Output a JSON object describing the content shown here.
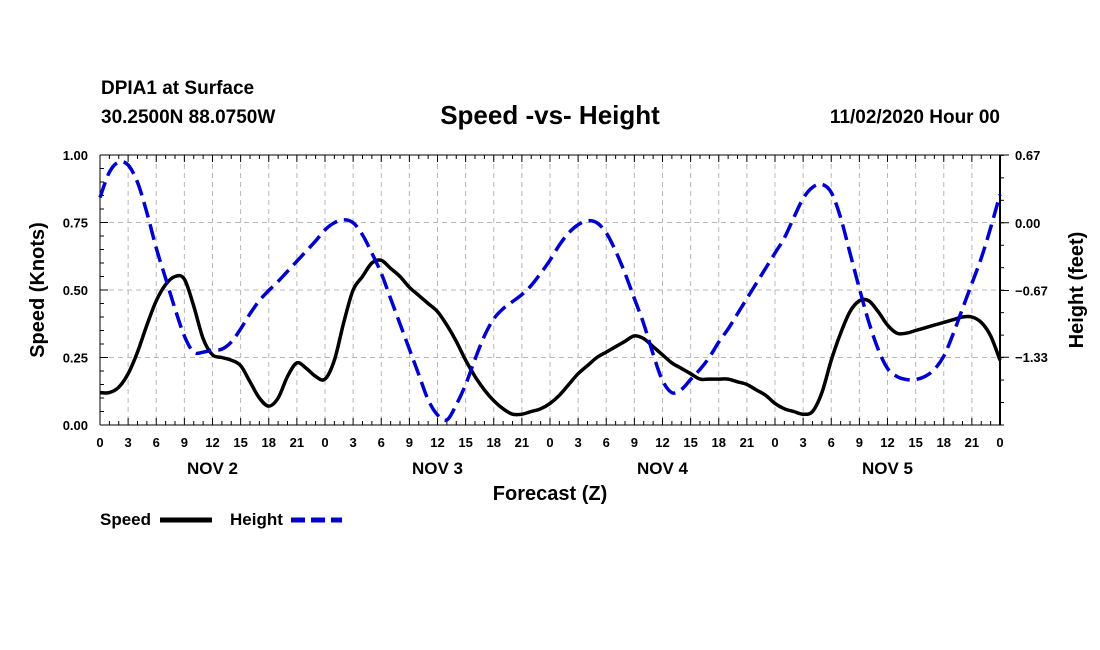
{
  "header": {
    "station": "DPIA1 at Surface",
    "coords": "30.2500N 88.0750W",
    "title": "Speed -vs- Height",
    "datetime": "11/02/2020 Hour 00"
  },
  "chart_data": {
    "type": "line",
    "title": "Speed -vs- Height",
    "xlabel": "Forecast (Z)",
    "ylabel_left": "Speed (Knots)",
    "ylabel_right": "Height (feet)",
    "x_range": [
      0,
      96
    ],
    "x_tick_labels": [
      "0",
      "3",
      "6",
      "9",
      "12",
      "15",
      "18",
      "21",
      "0",
      "3",
      "6",
      "9",
      "12",
      "15",
      "18",
      "21",
      "0",
      "3",
      "6",
      "9",
      "12",
      "15",
      "18",
      "21",
      "0",
      "3",
      "6",
      "9",
      "12",
      "15",
      "18",
      "21",
      "0"
    ],
    "date_labels": [
      {
        "label": "NOV 2",
        "hour": 12
      },
      {
        "label": "NOV 3",
        "hour": 36
      },
      {
        "label": "NOV 4",
        "hour": 60
      },
      {
        "label": "NOV 5",
        "hour": 84
      }
    ],
    "y_left": {
      "range": [
        0,
        1.0
      ],
      "ticks": [
        0.0,
        0.25,
        0.5,
        0.75,
        1.0
      ],
      "tick_labels": [
        "0.00",
        "0.25",
        "0.50",
        "0.75",
        "1.00"
      ]
    },
    "y_right": {
      "range": [
        -2.0,
        0.67
      ],
      "ticks": [
        0.67,
        0.0,
        -0.67,
        -1.33
      ],
      "tick_labels": [
        "0.67",
        "0.00",
        "−0.67",
        "−1.33"
      ]
    },
    "grid": true,
    "series": [
      {
        "name": "Speed",
        "axis": "left",
        "color": "#000000",
        "style": "solid",
        "points": [
          [
            0,
            0.12
          ],
          [
            1,
            0.12
          ],
          [
            2,
            0.14
          ],
          [
            3,
            0.19
          ],
          [
            4,
            0.27
          ],
          [
            5,
            0.37
          ],
          [
            6,
            0.46
          ],
          [
            7,
            0.52
          ],
          [
            8,
            0.55
          ],
          [
            9,
            0.54
          ],
          [
            10,
            0.44
          ],
          [
            11,
            0.32
          ],
          [
            12,
            0.26
          ],
          [
            13,
            0.25
          ],
          [
            14,
            0.24
          ],
          [
            15,
            0.22
          ],
          [
            16,
            0.16
          ],
          [
            17,
            0.1
          ],
          [
            18,
            0.07
          ],
          [
            19,
            0.1
          ],
          [
            20,
            0.18
          ],
          [
            21,
            0.23
          ],
          [
            22,
            0.21
          ],
          [
            23,
            0.18
          ],
          [
            24,
            0.17
          ],
          [
            25,
            0.24
          ],
          [
            26,
            0.38
          ],
          [
            27,
            0.5
          ],
          [
            28,
            0.55
          ],
          [
            29,
            0.6
          ],
          [
            30,
            0.61
          ],
          [
            31,
            0.58
          ],
          [
            32,
            0.55
          ],
          [
            33,
            0.51
          ],
          [
            34,
            0.48
          ],
          [
            35,
            0.45
          ],
          [
            36,
            0.42
          ],
          [
            37,
            0.37
          ],
          [
            38,
            0.31
          ],
          [
            39,
            0.24
          ],
          [
            40,
            0.18
          ],
          [
            41,
            0.13
          ],
          [
            42,
            0.09
          ],
          [
            43,
            0.06
          ],
          [
            44,
            0.04
          ],
          [
            45,
            0.04
          ],
          [
            46,
            0.05
          ],
          [
            47,
            0.06
          ],
          [
            48,
            0.08
          ],
          [
            49,
            0.11
          ],
          [
            50,
            0.15
          ],
          [
            51,
            0.19
          ],
          [
            52,
            0.22
          ],
          [
            53,
            0.25
          ],
          [
            54,
            0.27
          ],
          [
            55,
            0.29
          ],
          [
            56,
            0.31
          ],
          [
            57,
            0.33
          ],
          [
            58,
            0.32
          ],
          [
            59,
            0.29
          ],
          [
            60,
            0.26
          ],
          [
            61,
            0.23
          ],
          [
            62,
            0.21
          ],
          [
            63,
            0.19
          ],
          [
            64,
            0.17
          ],
          [
            65,
            0.17
          ],
          [
            66,
            0.17
          ],
          [
            67,
            0.17
          ],
          [
            68,
            0.16
          ],
          [
            69,
            0.15
          ],
          [
            70,
            0.13
          ],
          [
            71,
            0.11
          ],
          [
            72,
            0.08
          ],
          [
            73,
            0.06
          ],
          [
            74,
            0.05
          ],
          [
            75,
            0.04
          ],
          [
            76,
            0.05
          ],
          [
            77,
            0.12
          ],
          [
            78,
            0.24
          ],
          [
            79,
            0.34
          ],
          [
            80,
            0.42
          ],
          [
            81,
            0.46
          ],
          [
            82,
            0.46
          ],
          [
            83,
            0.42
          ],
          [
            84,
            0.37
          ],
          [
            85,
            0.34
          ],
          [
            86,
            0.34
          ],
          [
            87,
            0.35
          ],
          [
            88,
            0.36
          ],
          [
            89,
            0.37
          ],
          [
            90,
            0.38
          ],
          [
            91,
            0.39
          ],
          [
            92,
            0.4
          ],
          [
            93,
            0.4
          ],
          [
            94,
            0.38
          ],
          [
            95,
            0.33
          ],
          [
            96,
            0.24
          ]
        ]
      },
      {
        "name": "Height",
        "axis": "right",
        "color": "#0000cc",
        "style": "dashed",
        "points": [
          [
            0,
            0.25
          ],
          [
            1,
            0.5
          ],
          [
            2,
            0.6
          ],
          [
            3,
            0.57
          ],
          [
            4,
            0.4
          ],
          [
            5,
            0.1
          ],
          [
            6,
            -0.25
          ],
          [
            7,
            -0.55
          ],
          [
            8,
            -0.85
          ],
          [
            9,
            -1.12
          ],
          [
            10,
            -1.28
          ],
          [
            11,
            -1.28
          ],
          [
            12,
            -1.26
          ],
          [
            13,
            -1.25
          ],
          [
            14,
            -1.18
          ],
          [
            15,
            -1.05
          ],
          [
            16,
            -0.9
          ],
          [
            17,
            -0.77
          ],
          [
            18,
            -0.67
          ],
          [
            19,
            -0.58
          ],
          [
            20,
            -0.48
          ],
          [
            21,
            -0.38
          ],
          [
            22,
            -0.28
          ],
          [
            23,
            -0.18
          ],
          [
            24,
            -0.07
          ],
          [
            25,
            0.0
          ],
          [
            26,
            0.03
          ],
          [
            27,
            0.0
          ],
          [
            28,
            -0.12
          ],
          [
            29,
            -0.3
          ],
          [
            30,
            -0.5
          ],
          [
            31,
            -0.75
          ],
          [
            32,
            -1.0
          ],
          [
            33,
            -1.25
          ],
          [
            34,
            -1.5
          ],
          [
            35,
            -1.75
          ],
          [
            36,
            -1.9
          ],
          [
            37,
            -1.95
          ],
          [
            38,
            -1.8
          ],
          [
            39,
            -1.6
          ],
          [
            40,
            -1.35
          ],
          [
            41,
            -1.12
          ],
          [
            42,
            -0.95
          ],
          [
            43,
            -0.85
          ],
          [
            44,
            -0.78
          ],
          [
            45,
            -0.71
          ],
          [
            46,
            -0.62
          ],
          [
            47,
            -0.5
          ],
          [
            48,
            -0.37
          ],
          [
            49,
            -0.22
          ],
          [
            50,
            -0.1
          ],
          [
            51,
            -0.02
          ],
          [
            52,
            0.02
          ],
          [
            53,
            0.0
          ],
          [
            54,
            -0.1
          ],
          [
            55,
            -0.28
          ],
          [
            56,
            -0.5
          ],
          [
            57,
            -0.75
          ],
          [
            58,
            -1.0
          ],
          [
            59,
            -1.3
          ],
          [
            60,
            -1.56
          ],
          [
            61,
            -1.68
          ],
          [
            62,
            -1.65
          ],
          [
            63,
            -1.55
          ],
          [
            64,
            -1.45
          ],
          [
            65,
            -1.33
          ],
          [
            66,
            -1.18
          ],
          [
            67,
            -1.05
          ],
          [
            68,
            -0.9
          ],
          [
            69,
            -0.75
          ],
          [
            70,
            -0.6
          ],
          [
            71,
            -0.45
          ],
          [
            72,
            -0.3
          ],
          [
            73,
            -0.15
          ],
          [
            74,
            0.05
          ],
          [
            75,
            0.24
          ],
          [
            76,
            0.35
          ],
          [
            77,
            0.38
          ],
          [
            78,
            0.3
          ],
          [
            79,
            0.05
          ],
          [
            80,
            -0.3
          ],
          [
            81,
            -0.65
          ],
          [
            82,
            -0.98
          ],
          [
            83,
            -1.25
          ],
          [
            84,
            -1.44
          ],
          [
            85,
            -1.52
          ],
          [
            86,
            -1.55
          ],
          [
            87,
            -1.55
          ],
          [
            88,
            -1.52
          ],
          [
            89,
            -1.45
          ],
          [
            90,
            -1.32
          ],
          [
            91,
            -1.1
          ],
          [
            92,
            -0.85
          ],
          [
            93,
            -0.6
          ],
          [
            94,
            -0.35
          ],
          [
            95,
            -0.05
          ],
          [
            96,
            0.28
          ]
        ]
      }
    ],
    "legend": {
      "position": "bottom-left",
      "entries": [
        "Speed",
        "Height"
      ]
    }
  }
}
